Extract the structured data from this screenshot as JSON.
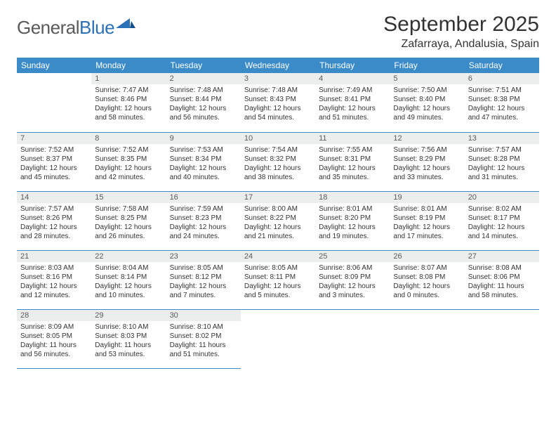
{
  "logo": {
    "word1": "General",
    "word2": "Blue"
  },
  "title": "September 2025",
  "location": "Zafarraya, Andalusia, Spain",
  "colors": {
    "header_bg": "#3b8bc9",
    "header_fg": "#ffffff",
    "daynum_bg": "#eceded",
    "daynum_fg": "#5a5a5a",
    "border": "#3b8bc9",
    "text": "#333333",
    "logo_gray": "#5a5a5a",
    "logo_blue": "#2c71b8"
  },
  "weekdays": [
    "Sunday",
    "Monday",
    "Tuesday",
    "Wednesday",
    "Thursday",
    "Friday",
    "Saturday"
  ],
  "weeks": [
    [
      null,
      {
        "n": "1",
        "sr": "Sunrise: 7:47 AM",
        "ss": "Sunset: 8:46 PM",
        "d1": "Daylight: 12 hours",
        "d2": "and 58 minutes."
      },
      {
        "n": "2",
        "sr": "Sunrise: 7:48 AM",
        "ss": "Sunset: 8:44 PM",
        "d1": "Daylight: 12 hours",
        "d2": "and 56 minutes."
      },
      {
        "n": "3",
        "sr": "Sunrise: 7:48 AM",
        "ss": "Sunset: 8:43 PM",
        "d1": "Daylight: 12 hours",
        "d2": "and 54 minutes."
      },
      {
        "n": "4",
        "sr": "Sunrise: 7:49 AM",
        "ss": "Sunset: 8:41 PM",
        "d1": "Daylight: 12 hours",
        "d2": "and 51 minutes."
      },
      {
        "n": "5",
        "sr": "Sunrise: 7:50 AM",
        "ss": "Sunset: 8:40 PM",
        "d1": "Daylight: 12 hours",
        "d2": "and 49 minutes."
      },
      {
        "n": "6",
        "sr": "Sunrise: 7:51 AM",
        "ss": "Sunset: 8:38 PM",
        "d1": "Daylight: 12 hours",
        "d2": "and 47 minutes."
      }
    ],
    [
      {
        "n": "7",
        "sr": "Sunrise: 7:52 AM",
        "ss": "Sunset: 8:37 PM",
        "d1": "Daylight: 12 hours",
        "d2": "and 45 minutes."
      },
      {
        "n": "8",
        "sr": "Sunrise: 7:52 AM",
        "ss": "Sunset: 8:35 PM",
        "d1": "Daylight: 12 hours",
        "d2": "and 42 minutes."
      },
      {
        "n": "9",
        "sr": "Sunrise: 7:53 AM",
        "ss": "Sunset: 8:34 PM",
        "d1": "Daylight: 12 hours",
        "d2": "and 40 minutes."
      },
      {
        "n": "10",
        "sr": "Sunrise: 7:54 AM",
        "ss": "Sunset: 8:32 PM",
        "d1": "Daylight: 12 hours",
        "d2": "and 38 minutes."
      },
      {
        "n": "11",
        "sr": "Sunrise: 7:55 AM",
        "ss": "Sunset: 8:31 PM",
        "d1": "Daylight: 12 hours",
        "d2": "and 35 minutes."
      },
      {
        "n": "12",
        "sr": "Sunrise: 7:56 AM",
        "ss": "Sunset: 8:29 PM",
        "d1": "Daylight: 12 hours",
        "d2": "and 33 minutes."
      },
      {
        "n": "13",
        "sr": "Sunrise: 7:57 AM",
        "ss": "Sunset: 8:28 PM",
        "d1": "Daylight: 12 hours",
        "d2": "and 31 minutes."
      }
    ],
    [
      {
        "n": "14",
        "sr": "Sunrise: 7:57 AM",
        "ss": "Sunset: 8:26 PM",
        "d1": "Daylight: 12 hours",
        "d2": "and 28 minutes."
      },
      {
        "n": "15",
        "sr": "Sunrise: 7:58 AM",
        "ss": "Sunset: 8:25 PM",
        "d1": "Daylight: 12 hours",
        "d2": "and 26 minutes."
      },
      {
        "n": "16",
        "sr": "Sunrise: 7:59 AM",
        "ss": "Sunset: 8:23 PM",
        "d1": "Daylight: 12 hours",
        "d2": "and 24 minutes."
      },
      {
        "n": "17",
        "sr": "Sunrise: 8:00 AM",
        "ss": "Sunset: 8:22 PM",
        "d1": "Daylight: 12 hours",
        "d2": "and 21 minutes."
      },
      {
        "n": "18",
        "sr": "Sunrise: 8:01 AM",
        "ss": "Sunset: 8:20 PM",
        "d1": "Daylight: 12 hours",
        "d2": "and 19 minutes."
      },
      {
        "n": "19",
        "sr": "Sunrise: 8:01 AM",
        "ss": "Sunset: 8:19 PM",
        "d1": "Daylight: 12 hours",
        "d2": "and 17 minutes."
      },
      {
        "n": "20",
        "sr": "Sunrise: 8:02 AM",
        "ss": "Sunset: 8:17 PM",
        "d1": "Daylight: 12 hours",
        "d2": "and 14 minutes."
      }
    ],
    [
      {
        "n": "21",
        "sr": "Sunrise: 8:03 AM",
        "ss": "Sunset: 8:16 PM",
        "d1": "Daylight: 12 hours",
        "d2": "and 12 minutes."
      },
      {
        "n": "22",
        "sr": "Sunrise: 8:04 AM",
        "ss": "Sunset: 8:14 PM",
        "d1": "Daylight: 12 hours",
        "d2": "and 10 minutes."
      },
      {
        "n": "23",
        "sr": "Sunrise: 8:05 AM",
        "ss": "Sunset: 8:12 PM",
        "d1": "Daylight: 12 hours",
        "d2": "and 7 minutes."
      },
      {
        "n": "24",
        "sr": "Sunrise: 8:05 AM",
        "ss": "Sunset: 8:11 PM",
        "d1": "Daylight: 12 hours",
        "d2": "and 5 minutes."
      },
      {
        "n": "25",
        "sr": "Sunrise: 8:06 AM",
        "ss": "Sunset: 8:09 PM",
        "d1": "Daylight: 12 hours",
        "d2": "and 3 minutes."
      },
      {
        "n": "26",
        "sr": "Sunrise: 8:07 AM",
        "ss": "Sunset: 8:08 PM",
        "d1": "Daylight: 12 hours",
        "d2": "and 0 minutes."
      },
      {
        "n": "27",
        "sr": "Sunrise: 8:08 AM",
        "ss": "Sunset: 8:06 PM",
        "d1": "Daylight: 11 hours",
        "d2": "and 58 minutes."
      }
    ],
    [
      {
        "n": "28",
        "sr": "Sunrise: 8:09 AM",
        "ss": "Sunset: 8:05 PM",
        "d1": "Daylight: 11 hours",
        "d2": "and 56 minutes."
      },
      {
        "n": "29",
        "sr": "Sunrise: 8:10 AM",
        "ss": "Sunset: 8:03 PM",
        "d1": "Daylight: 11 hours",
        "d2": "and 53 minutes."
      },
      {
        "n": "30",
        "sr": "Sunrise: 8:10 AM",
        "ss": "Sunset: 8:02 PM",
        "d1": "Daylight: 11 hours",
        "d2": "and 51 minutes."
      },
      null,
      null,
      null,
      null
    ]
  ]
}
